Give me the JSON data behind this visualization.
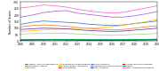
{
  "years": [
    2008,
    2009,
    2010,
    2011,
    2012,
    2013,
    2014,
    2015,
    2016,
    2017,
    2018,
    2019,
    2020
  ],
  "series": {
    "Systemic Lupus Erythematosus": [
      130,
      145,
      155,
      150,
      145,
      140,
      130,
      125,
      120,
      125,
      135,
      145,
      155
    ],
    "Rheumatoid Arthritis": [
      110,
      120,
      125,
      120,
      115,
      105,
      98,
      92,
      88,
      90,
      100,
      110,
      118
    ],
    "Psoriasis": [
      55,
      58,
      60,
      62,
      60,
      55,
      52,
      48,
      45,
      48,
      52,
      55,
      60
    ],
    "Inflammatory Bowel Disease": [
      75,
      80,
      88,
      92,
      96,
      98,
      100,
      105,
      112,
      122,
      135,
      150,
      168
    ],
    "Primary Biliary Cholangitis": [
      8,
      8,
      9,
      9,
      8,
      8,
      7,
      7,
      7,
      8,
      8,
      9,
      10
    ],
    "Celiac Disease": [
      10,
      11,
      12,
      12,
      11,
      11,
      10,
      10,
      9,
      10,
      11,
      12,
      13
    ],
    "Multiple Sclerosis": [
      185,
      200,
      220,
      230,
      235,
      215,
      205,
      195,
      185,
      185,
      195,
      210,
      228
    ],
    "Autoimmune Thyroid Disease": [
      12,
      12,
      13,
      13,
      12,
      12,
      11,
      11,
      10,
      11,
      12,
      12,
      13
    ],
    "Type 1 Diabetes": [
      90,
      95,
      100,
      98,
      95,
      88,
      82,
      78,
      75,
      78,
      85,
      92,
      100
    ],
    "Antiphospholipid Syndrome": [
      8,
      9,
      9,
      10,
      9,
      8,
      8,
      7,
      7,
      7,
      8,
      9,
      10
    ],
    "Sjogrens": [
      10,
      10,
      11,
      12,
      12,
      11,
      11,
      11,
      11,
      12,
      13,
      14,
      16
    ],
    "Other Autoimmune Diseases": [
      255,
      265,
      278,
      272,
      262,
      245,
      232,
      222,
      215,
      222,
      238,
      255,
      272
    ]
  },
  "colors": {
    "Systemic Lupus Erythematosus": "#4472c4",
    "Rheumatoid Arthritis": "#ed7d31",
    "Psoriasis": "#a9d18e",
    "Inflammatory Bowel Disease": "#ffc000",
    "Primary Biliary Cholangitis": "#70ad47",
    "Celiac Disease": "#ff0000",
    "Multiple Sclerosis": "#9966cc",
    "Autoimmune Thyroid Disease": "#00b0f0",
    "Type 1 Diabetes": "#7030a0",
    "Antiphospholipid Syndrome": "#c00000",
    "Sjogrens": "#00b050",
    "Other Autoimmune Diseases": "#ff66cc"
  },
  "legend_labels": [
    "Systemic Lupus Erythematosus",
    "Rheumatoid Arthritis",
    "Psoriasis",
    "Inflammatory Bowel Disease",
    "Primary Biliary Cholangitis",
    "Celiac Disease",
    "Multiple Sclerosis",
    "Autoimmune Thyroid Disease",
    "Type 1 Diabetes",
    "Antiphospholipid Syndrome",
    "Sjogrens",
    "Other Autoimmune Diseases"
  ],
  "ylabel": "Number of Grants",
  "ylim": [
    0,
    300
  ],
  "yticks": [
    0,
    50,
    100,
    150,
    200,
    250,
    300
  ]
}
